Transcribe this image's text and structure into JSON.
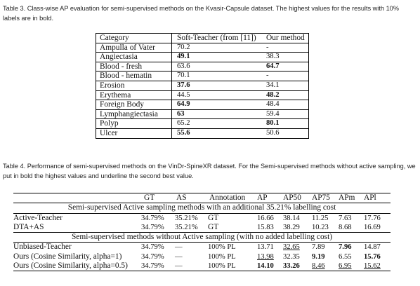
{
  "table3": {
    "caption": "Table 3. Class-wise AP evaluation for semi-supervised methods on the Kvasir-Capsule dataset. The highest values for the results with 10% labels are in bold.",
    "headers": [
      "Category",
      "Soft-Teacher (from [11])",
      "Our method"
    ],
    "rows": [
      {
        "category": "Ampulla of Vater",
        "soft": "70.2",
        "ours": "-"
      },
      {
        "category": "Angiectasia",
        "soft": "49.1",
        "ours": "38.3"
      },
      {
        "category": "Blood - fresh",
        "soft": "63.6",
        "ours": "64.7"
      },
      {
        "category": "Blood - hematin",
        "soft": "70.1",
        "ours": "-"
      },
      {
        "category": "Erosion",
        "soft": "37.6",
        "ours": "34.1"
      },
      {
        "category": "Erythema",
        "soft": "44.5",
        "ours": "48.2"
      },
      {
        "category": "Foreign Body",
        "soft": "64.9",
        "ours": "48.4"
      },
      {
        "category": "Lymphangiectasia",
        "soft": "63",
        "ours": "59.4"
      },
      {
        "category": "Polyp",
        "soft": "65.2",
        "ours": "80.1"
      },
      {
        "category": "Ulcer",
        "soft": "55.6",
        "ours": "50.6"
      }
    ]
  },
  "table4": {
    "caption": "Table 4. Performance of semi-supervised methods on the VinDr-SpineXR dataset. For the Semi-supervised methods without active sampling, we put in bold the highest values and underline the second best value.",
    "headers": [
      "",
      "GT",
      "AS",
      "Annotation",
      "AP",
      "AP50",
      "AP75",
      "APm",
      "APl"
    ],
    "section1": "Semi-supervised Active sampling methods with an additional 35.21% labelling cost",
    "section2": "Semi-supervised methods without Active sampling (with no added labelling cost)",
    "rows1": [
      {
        "method": "Active-Teacher",
        "gt": "34.79%",
        "as": "35.21%",
        "ann": "GT",
        "ap": "16.66",
        "ap50": "38.14",
        "ap75": "11.25",
        "apm": "7.63",
        "apl": "17.76"
      },
      {
        "method": "DTA+AS",
        "gt": "34.79%",
        "as": "35.21%",
        "ann": "GT",
        "ap": "15.83",
        "ap50": "38.29",
        "ap75": "10.23",
        "apm": "8.68",
        "apl": "16.69"
      }
    ],
    "rows2": [
      {
        "method": "Unbiased-Teacher",
        "gt": "34.79%",
        "as": "—",
        "ann": "100% PL",
        "ap": "13.71",
        "ap50": "32.65",
        "ap75": "7.89",
        "apm": "7.96",
        "apl": "14.87"
      },
      {
        "method": "Ours (Cosine Similarity, alpha=1)",
        "gt": "34.79%",
        "as": "—",
        "ann": "100% PL",
        "ap": "13.98",
        "ap50": "32.35",
        "ap75": "9.19",
        "apm": "6.55",
        "apl": "15.76"
      },
      {
        "method": "Ours (Cosine Similarity, alpha=0.5)",
        "gt": "34.79%",
        "as": "—",
        "ann": "100% PL",
        "ap": "14.10",
        "ap50": "33.26",
        "ap75": "8.46",
        "apm": "6.95",
        "apl": "15.62"
      }
    ]
  }
}
